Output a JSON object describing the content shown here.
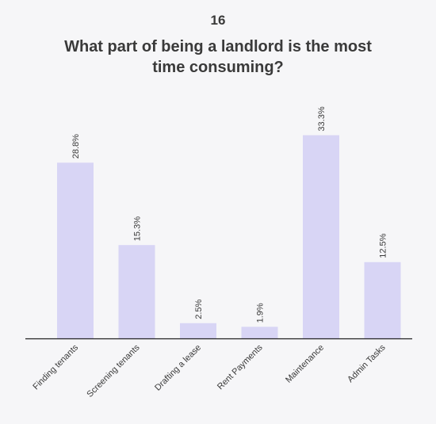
{
  "header": {
    "number": "16",
    "title": "What part of being a landlord is the most time consuming?"
  },
  "colors": {
    "bar": "#d8d5f5",
    "axis": "#222222",
    "text": "#3a3a3a",
    "background": "#f6f6f8"
  },
  "chart_data": {
    "type": "bar",
    "title": "What part of being a landlord is the most time consuming?",
    "categories": [
      "Finding tenants",
      "Screening tenants",
      "Drafting a lease",
      "Rent Payments",
      "Maintenance",
      "Admin Tasks"
    ],
    "values": [
      28.8,
      15.3,
      2.5,
      1.9,
      33.3,
      12.5
    ],
    "data_labels": [
      "28.8%",
      "15.3%",
      "2.5%",
      "1.9%",
      "33.3%",
      "12.5%"
    ],
    "xlabel": "",
    "ylabel": "",
    "ylim": [
      0,
      35
    ],
    "grid": false,
    "legend": "none"
  }
}
